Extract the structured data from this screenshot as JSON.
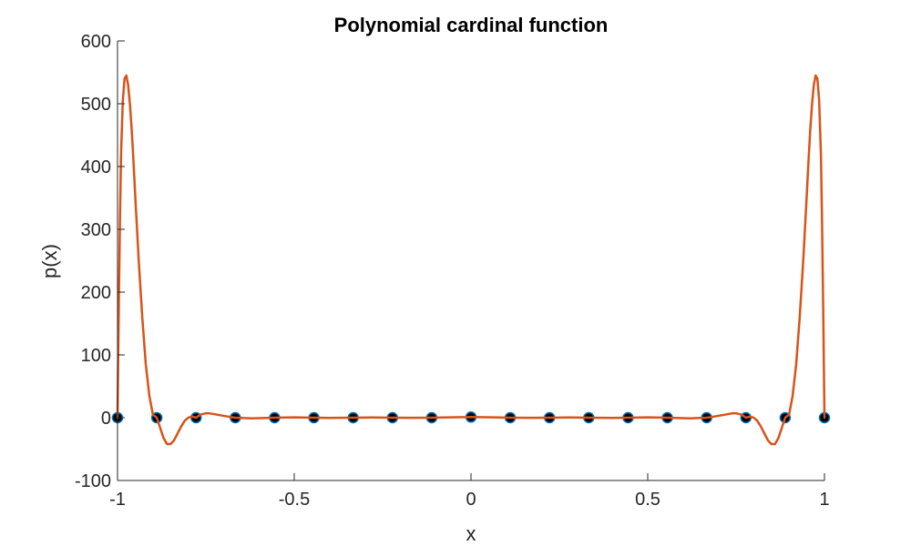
{
  "chart_data": {
    "type": "line",
    "title": "Polynomial cardinal function",
    "xlabel": "x",
    "ylabel": "p(x)",
    "xlim": [
      -1,
      1
    ],
    "ylim": [
      -100,
      600
    ],
    "xticks": [
      -1,
      -0.5,
      0,
      0.5,
      1
    ],
    "xtick_labels": [
      "-1",
      "-0.5",
      "0",
      "0.5",
      "1"
    ],
    "yticks": [
      -100,
      0,
      100,
      200,
      300,
      400,
      500,
      600
    ],
    "ytick_labels": [
      "-100",
      "0",
      "100",
      "200",
      "300",
      "400",
      "500",
      "600"
    ],
    "grid": false,
    "series": [
      {
        "kind": "markers",
        "color": "#000000",
        "edge_color": "#0072BD",
        "x": [
          -1,
          -0.8889,
          -0.7778,
          -0.6667,
          -0.5556,
          -0.4444,
          -0.3333,
          -0.2222,
          -0.1111,
          0,
          0.1111,
          0.2222,
          0.3333,
          0.4444,
          0.5556,
          0.6667,
          0.7778,
          0.8889,
          1
        ],
        "y": [
          0,
          0,
          0,
          0,
          0,
          0,
          0,
          0,
          0,
          1,
          0,
          0,
          0,
          0,
          0,
          0,
          0,
          0,
          0
        ]
      },
      {
        "kind": "line",
        "color": "#D95319",
        "x": [
          -1,
          -0.997,
          -0.993,
          -0.99,
          -0.985,
          -0.98,
          -0.975,
          -0.97,
          -0.965,
          -0.96,
          -0.955,
          -0.95,
          -0.94,
          -0.93,
          -0.92,
          -0.91,
          -0.9,
          -0.889,
          -0.88,
          -0.87,
          -0.86,
          -0.85,
          -0.84,
          -0.83,
          -0.82,
          -0.81,
          -0.8,
          -0.79,
          -0.778,
          -0.765,
          -0.75,
          -0.74,
          -0.72,
          -0.7,
          -0.68,
          -0.667,
          -0.62,
          -0.556,
          -0.5,
          -0.444,
          -0.4,
          -0.333,
          -0.28,
          -0.222,
          -0.17,
          -0.111,
          -0.06,
          0,
          0.06,
          0.111,
          0.17,
          0.222,
          0.28,
          0.333,
          0.4,
          0.444,
          0.5,
          0.556,
          0.62,
          0.667,
          0.68,
          0.7,
          0.72,
          0.74,
          0.75,
          0.765,
          0.778,
          0.79,
          0.8,
          0.81,
          0.82,
          0.83,
          0.84,
          0.85,
          0.86,
          0.87,
          0.88,
          0.889,
          0.9,
          0.91,
          0.92,
          0.93,
          0.94,
          0.95,
          0.955,
          0.96,
          0.965,
          0.97,
          0.975,
          0.98,
          0.985,
          0.99,
          0.993,
          0.997,
          1
        ],
        "y": [
          0,
          150,
          320,
          420,
          505,
          540,
          545,
          530,
          500,
          460,
          410,
          355,
          250,
          160,
          85,
          35,
          5,
          0,
          -15,
          -32,
          -42,
          -42,
          -36,
          -25,
          -14,
          -5,
          0,
          2,
          0,
          5,
          7,
          7,
          5,
          3,
          1,
          0,
          -1,
          0,
          0.5,
          0,
          -0.3,
          0,
          0.3,
          0,
          -0.2,
          0,
          0.5,
          1,
          0.5,
          0,
          -0.2,
          0,
          0.3,
          0,
          -0.3,
          0,
          0.5,
          0,
          -1,
          0,
          1,
          3,
          5,
          7,
          7,
          5,
          0,
          2,
          0,
          -5,
          -14,
          -25,
          -36,
          -42,
          -42,
          -32,
          -15,
          0,
          5,
          35,
          85,
          160,
          250,
          355,
          410,
          460,
          500,
          530,
          545,
          540,
          505,
          420,
          320,
          150,
          0
        ]
      }
    ]
  }
}
